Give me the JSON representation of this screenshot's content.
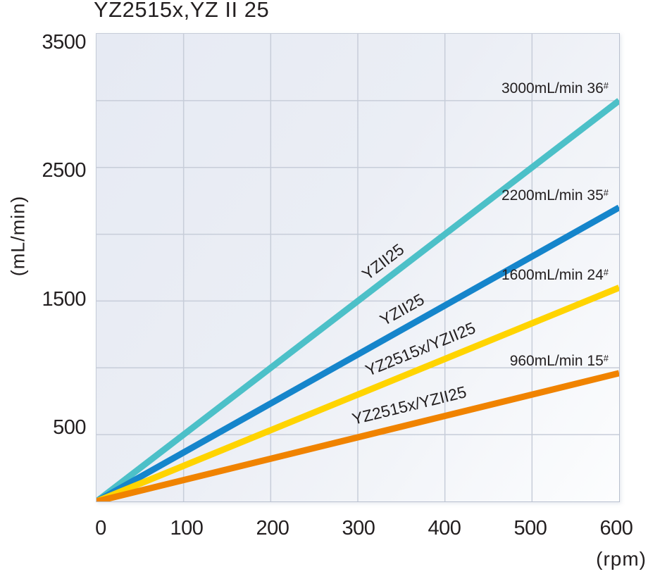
{
  "title": "YZ2515x,YZ II 25",
  "axes": {
    "y_label": "(mL/min)",
    "x_label": "(rpm)"
  },
  "colors": {
    "text": "#231f20",
    "gridline": "#c7cdd9",
    "plot_border": "#b9c0cf",
    "plot_bg_top": "#e6eaf3",
    "plot_bg_bottom": "#fcfdfe"
  },
  "chart_data": {
    "type": "line",
    "title": "YZ2515x,YZ II 25",
    "xlabel": "(rpm)",
    "ylabel": "(mL/min)",
    "xlim": [
      0,
      600
    ],
    "ylim": [
      0,
      3500
    ],
    "x_ticks": [
      0,
      100,
      200,
      300,
      400,
      500,
      600
    ],
    "y_ticks": [
      3500,
      2500,
      1500,
      500
    ],
    "grid": true,
    "grid_step_y": 500,
    "legend_position": "labels-on-lines",
    "series": [
      {
        "name": "YZII25",
        "color": "#4cc0c8",
        "x": [
          0,
          600
        ],
        "y": [
          0,
          3000
        ],
        "flow_at_600rpm_ml_min": 3000,
        "end_label": "3000mL/min 36",
        "end_label_sup": "#",
        "label_anchor_rpm": 330
      },
      {
        "name": "YZII25",
        "color": "#1585cb",
        "x": [
          0,
          600
        ],
        "y": [
          0,
          2200
        ],
        "flow_at_600rpm_ml_min": 2200,
        "end_label": "2200mL/min 35",
        "end_label_sup": "#",
        "label_anchor_rpm": 352
      },
      {
        "name": "YZ2515x/YZII25",
        "color": "#ffd400",
        "x": [
          0,
          600
        ],
        "y": [
          0,
          1600
        ],
        "flow_at_600rpm_ml_min": 1600,
        "end_label": "1600mL/min 24",
        "end_label_sup": "#",
        "label_anchor_rpm": 373
      },
      {
        "name": "YZ2515x/YZII25",
        "color": "#f08300",
        "x": [
          0,
          600
        ],
        "y": [
          0,
          960
        ],
        "flow_at_600rpm_ml_min": 960,
        "end_label": "960mL/min 15",
        "end_label_sup": "#",
        "label_anchor_rpm": 360
      }
    ]
  }
}
